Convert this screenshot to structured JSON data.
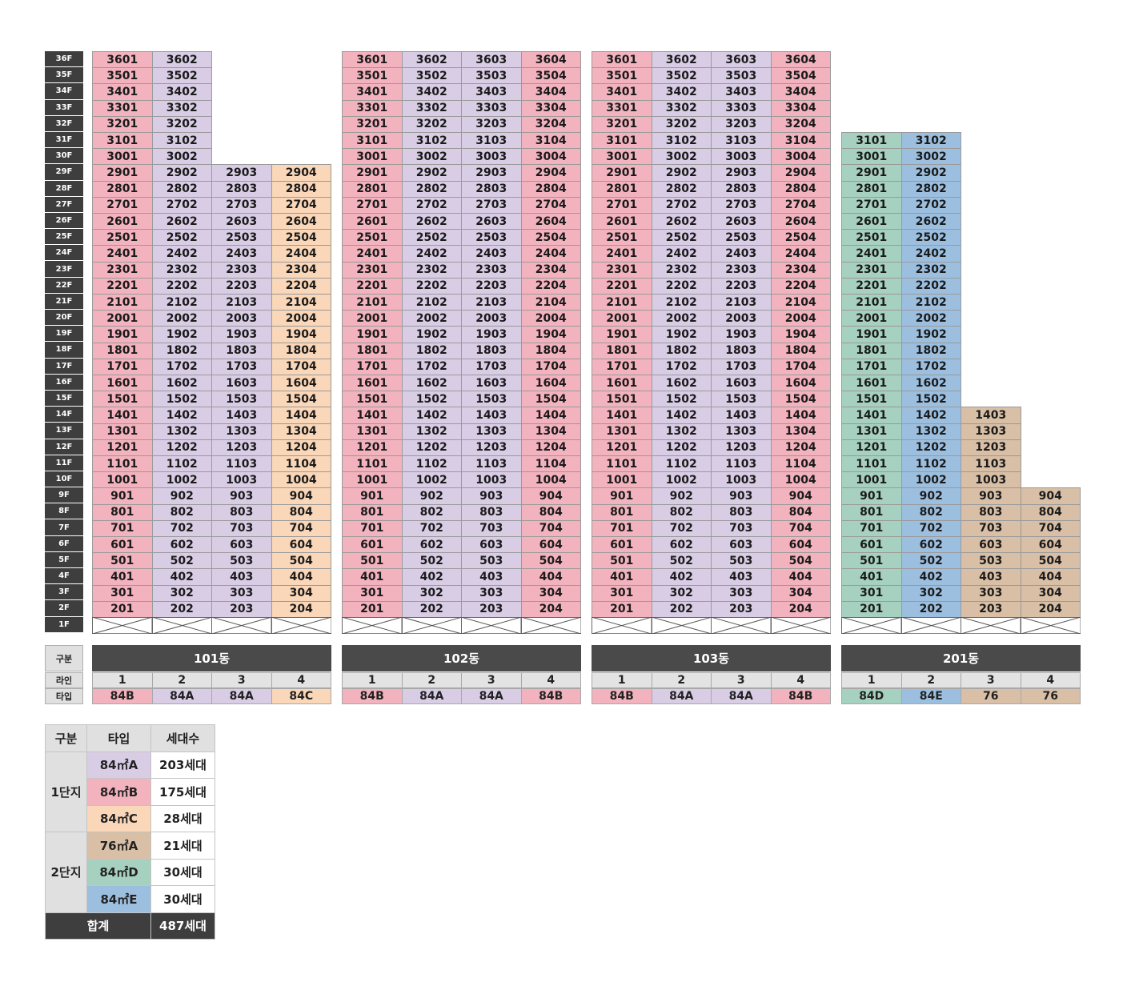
{
  "floor_labels": [
    "36F",
    "35F",
    "34F",
    "33F",
    "32F",
    "31F",
    "30F",
    "29F",
    "28F",
    "27F",
    "26F",
    "25F",
    "24F",
    "23F",
    "22F",
    "21F",
    "20F",
    "19F",
    "18F",
    "17F",
    "16F",
    "15F",
    "14F",
    "13F",
    "12F",
    "11F",
    "10F",
    "9F",
    "8F",
    "7F",
    "6F",
    "5F",
    "4F",
    "3F",
    "2F",
    "1F"
  ],
  "colors": {
    "84B": "#f3b3be",
    "84A": "#d9cde6",
    "84C": "#fad7b8",
    "84D": "#a6d0c0",
    "84E": "#9cbfe0",
    "76": "#d8bfa6",
    "label_bg": "#3e3e3e"
  },
  "buildings": [
    {
      "name": "101동",
      "lines": [
        {
          "line": "1",
          "type": "84B",
          "top_floor": 36
        },
        {
          "line": "2",
          "type": "84A",
          "top_floor": 36
        },
        {
          "line": "3",
          "type": "84A",
          "top_floor": 29
        },
        {
          "line": "4",
          "type": "84C",
          "top_floor": 29
        }
      ]
    },
    {
      "name": "102동",
      "lines": [
        {
          "line": "1",
          "type": "84B",
          "top_floor": 36
        },
        {
          "line": "2",
          "type": "84A",
          "top_floor": 36
        },
        {
          "line": "3",
          "type": "84A",
          "top_floor": 36
        },
        {
          "line": "4",
          "type": "84B",
          "top_floor": 36
        }
      ]
    },
    {
      "name": "103동",
      "lines": [
        {
          "line": "1",
          "type": "84B",
          "top_floor": 36
        },
        {
          "line": "2",
          "type": "84A",
          "top_floor": 36
        },
        {
          "line": "3",
          "type": "84A",
          "top_floor": 36
        },
        {
          "line": "4",
          "type": "84B",
          "top_floor": 36
        }
      ]
    },
    {
      "name": "201동",
      "lines": [
        {
          "line": "1",
          "type": "84D",
          "top_floor": 31
        },
        {
          "line": "2",
          "type": "84E",
          "top_floor": 31
        },
        {
          "line": "3",
          "type": "76",
          "top_floor": 14
        },
        {
          "line": "4",
          "type": "76",
          "top_floor": 9
        }
      ]
    }
  ],
  "header": {
    "category": "구분",
    "line": "라인",
    "type": "타입"
  },
  "summary": {
    "headers": [
      "구분",
      "타입",
      "세대수"
    ],
    "groups": [
      {
        "name": "1단지",
        "rows": [
          {
            "type": "84㎡A",
            "key": "84A",
            "count": "203세대"
          },
          {
            "type": "84㎡B",
            "key": "84B",
            "count": "175세대"
          },
          {
            "type": "84㎡C",
            "key": "84C",
            "count": "28세대"
          }
        ]
      },
      {
        "name": "2단지",
        "rows": [
          {
            "type": "76㎡A",
            "key": "76",
            "count": "21세대"
          },
          {
            "type": "84㎡D",
            "key": "84D",
            "count": "30세대"
          },
          {
            "type": "84㎡E",
            "key": "84E",
            "count": "30세대"
          }
        ]
      }
    ],
    "total_label": "합계",
    "total_count": "487세대"
  }
}
